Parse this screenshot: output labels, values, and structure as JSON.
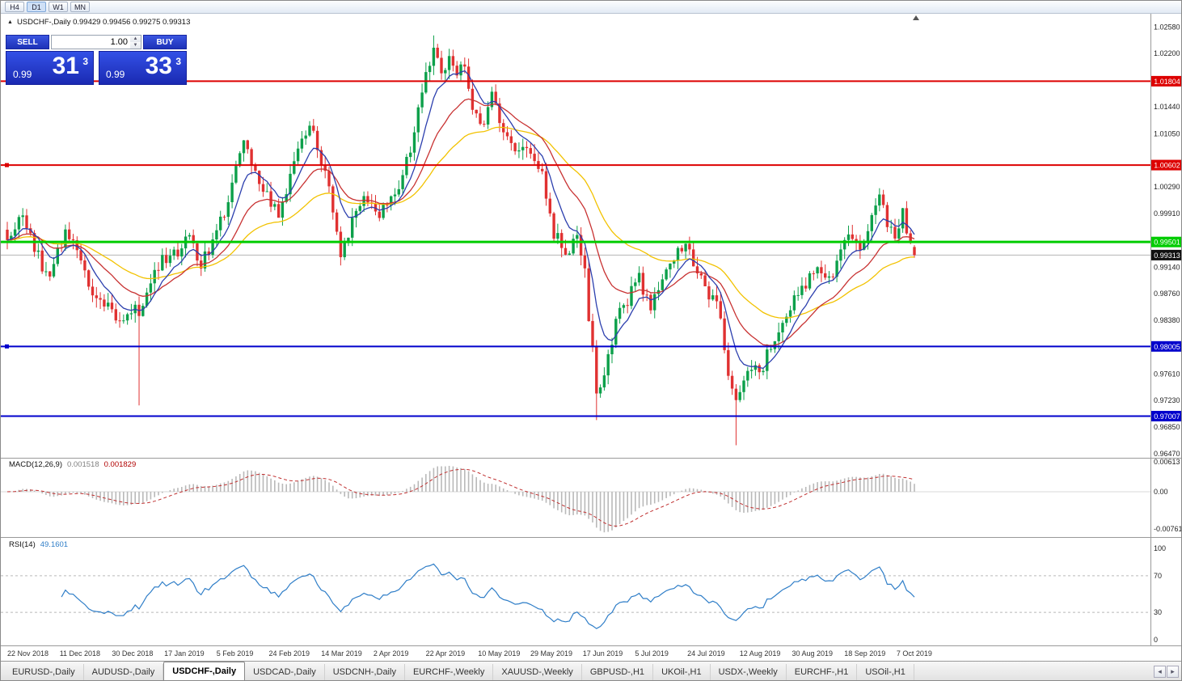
{
  "toolbar": {
    "timeframes": [
      {
        "label": "H4",
        "active": false
      },
      {
        "label": "D1",
        "active": true
      },
      {
        "label": "W1",
        "active": false
      },
      {
        "label": "MN",
        "active": false
      }
    ]
  },
  "chart": {
    "collapse_icon": "▲",
    "symbol_line": "USDCHF-,Daily  0.99429 0.99456 0.99275 0.99313",
    "top_arrow_icon": "▲"
  },
  "trade_widget": {
    "sell_label": "SELL",
    "buy_label": "BUY",
    "volume": "1.00",
    "spinner_up_icon": "▲",
    "spinner_down_icon": "▼",
    "sell_price": {
      "small": "0.99",
      "big": "31",
      "sup": "3"
    },
    "buy_price": {
      "small": "0.99",
      "big": "33",
      "sup": "3"
    }
  },
  "macd_panel": {
    "label": "MACD(12,26,9)",
    "value_main": "0.001518",
    "value_signal": "0.001829"
  },
  "rsi_panel": {
    "label": "RSI(14)",
    "value": "49.1601"
  },
  "tabs": {
    "items": [
      {
        "label": "EURUSD-,Daily",
        "active": false
      },
      {
        "label": "AUDUSD-,Daily",
        "active": false
      },
      {
        "label": "USDCHF-,Daily",
        "active": true
      },
      {
        "label": "USDCAD-,Daily",
        "active": false
      },
      {
        "label": "USDCNH-,Daily",
        "active": false
      },
      {
        "label": "EURCHF-,Weekly",
        "active": false
      },
      {
        "label": "XAUUSD-,Weekly",
        "active": false
      },
      {
        "label": "GBPUSD-,H1",
        "active": false
      },
      {
        "label": "UKOil-,H1",
        "active": false
      },
      {
        "label": "USDX-,Weekly",
        "active": false
      },
      {
        "label": "EURCHF-,H1",
        "active": false
      },
      {
        "label": "USOil-,H1",
        "active": false
      }
    ],
    "scroll_left_icon": "◂",
    "scroll_right_icon": "▸"
  },
  "chart_data": {
    "type": "candlestick",
    "symbol": "USDCHF-",
    "timeframe": "Daily",
    "ohlc_last": {
      "open": 0.99429,
      "high": 0.99456,
      "low": 0.99275,
      "close": 0.99313
    },
    "price_range": {
      "top": 1.0277,
      "bottom": 0.9641
    },
    "price_axis_ticks": [
      "1.02580",
      "1.02200",
      "1.01440",
      "1.01050",
      "1.00290",
      "0.99910",
      "0.99140",
      "0.98760",
      "0.98380",
      "0.97610",
      "0.97230",
      "0.96850",
      "0.96470"
    ],
    "horizontal_lines": [
      {
        "price": 1.01804,
        "tag": "1.01804",
        "color": "#dd0000",
        "width": 2,
        "handle": false
      },
      {
        "price": 1.00602,
        "tag": "1.00602",
        "color": "#dd0000",
        "width": 2,
        "handle": true
      },
      {
        "price": 0.99501,
        "tag": "0.99501",
        "color": "#00cc00",
        "width": 3,
        "handle": false
      },
      {
        "price": 0.98005,
        "tag": "0.98005",
        "color": "#0000cc",
        "width": 2,
        "handle": true
      },
      {
        "price": 0.97007,
        "tag": "0.97007",
        "color": "#0000cc",
        "width": 2,
        "handle": false
      }
    ],
    "current_price": {
      "value": 0.99313,
      "tag": "0.99313"
    },
    "date_labels": [
      "22 Nov 2018",
      "11 Dec 2018",
      "30 Dec 2018",
      "17 Jan 2019",
      "5 Feb 2019",
      "24 Feb 2019",
      "14 Mar 2019",
      "2 Apr 2019",
      "22 Apr 2019",
      "10 May 2019",
      "29 May 2019",
      "17 Jun 2019",
      "5 Jul 2019",
      "24 Jul 2019",
      "12 Aug 2019",
      "30 Aug 2019",
      "18 Sep 2019",
      "7 Oct 2019"
    ],
    "num_candles": 235,
    "price_path_anchors": [
      [
        0,
        0.995
      ],
      [
        2,
        0.9975
      ],
      [
        4,
        0.999
      ],
      [
        6,
        0.996
      ],
      [
        8,
        0.993
      ],
      [
        10,
        0.99
      ],
      [
        13,
        0.9935
      ],
      [
        15,
        0.9962
      ],
      [
        18,
        0.9938
      ],
      [
        21,
        0.9895
      ],
      [
        24,
        0.9858
      ],
      [
        26,
        0.9872
      ],
      [
        28,
        0.9832
      ],
      [
        31,
        0.9852
      ],
      [
        34,
        0.985
      ],
      [
        37,
        0.9888
      ],
      [
        40,
        0.9922
      ],
      [
        44,
        0.9936
      ],
      [
        47,
        0.9962
      ],
      [
        50,
        0.9918
      ],
      [
        53,
        0.9948
      ],
      [
        56,
        0.9995
      ],
      [
        59,
        1.0058
      ],
      [
        61,
        1.0088
      ],
      [
        64,
        1.0042
      ],
      [
        67,
        1.0012
      ],
      [
        70,
        0.9988
      ],
      [
        73,
        1.004
      ],
      [
        76,
        1.0102
      ],
      [
        78,
        1.0118
      ],
      [
        81,
        1.0062
      ],
      [
        84,
        1.0002
      ],
      [
        86,
        0.9938
      ],
      [
        89,
        0.9975
      ],
      [
        92,
        1.0005
      ],
      [
        95,
        0.999
      ],
      [
        98,
        1.0002
      ],
      [
        101,
        1.003
      ],
      [
        104,
        1.0082
      ],
      [
        107,
        1.016
      ],
      [
        110,
        1.0232
      ],
      [
        112,
        1.0192
      ],
      [
        114,
        1.0215
      ],
      [
        116,
        1.0183
      ],
      [
        118,
        1.0205
      ],
      [
        120,
        1.0138
      ],
      [
        123,
        1.0115
      ],
      [
        125,
        1.0163
      ],
      [
        128,
        1.011
      ],
      [
        131,
        1.0072
      ],
      [
        134,
        1.0092
      ],
      [
        137,
        1.0065
      ],
      [
        139,
        1.0022
      ],
      [
        141,
        0.9962
      ],
      [
        144,
        0.9938
      ],
      [
        147,
        0.9955
      ],
      [
        149,
        0.9905
      ],
      [
        152,
        0.9732
      ],
      [
        154,
        0.9762
      ],
      [
        157,
        0.984
      ],
      [
        160,
        0.9866
      ],
      [
        163,
        0.9896
      ],
      [
        166,
        0.9856
      ],
      [
        169,
        0.9896
      ],
      [
        172,
        0.9932
      ],
      [
        175,
        0.9948
      ],
      [
        178,
        0.9902
      ],
      [
        181,
        0.987
      ],
      [
        183,
        0.9872
      ],
      [
        186,
        0.9762
      ],
      [
        188,
        0.9716
      ],
      [
        191,
        0.9776
      ],
      [
        194,
        0.9756
      ],
      [
        197,
        0.98
      ],
      [
        200,
        0.9832
      ],
      [
        203,
        0.9866
      ],
      [
        206,
        0.9886
      ],
      [
        209,
        0.992
      ],
      [
        212,
        0.9896
      ],
      [
        215,
        0.9936
      ],
      [
        218,
        0.996
      ],
      [
        220,
        0.9936
      ],
      [
        223,
        0.9986
      ],
      [
        225,
        1.0016
      ],
      [
        227,
        0.9976
      ],
      [
        229,
        0.9946
      ],
      [
        231,
        0.9988
      ],
      [
        233,
        0.9952
      ],
      [
        234,
        0.99313
      ]
    ],
    "spikes": [
      {
        "day": 34,
        "low": 0.9716
      },
      {
        "day": 110,
        "high": 1.0246
      },
      {
        "day": 152,
        "low": 0.9695
      },
      {
        "day": 188,
        "low": 0.9659
      }
    ],
    "candle_up_color": "#0ca04a",
    "candle_down_color": "#e03131",
    "ma_lines": [
      {
        "period": 42,
        "color": "#f2c200"
      },
      {
        "period": 20,
        "color": "#c83232"
      },
      {
        "period": 8,
        "color": "#2c3fae"
      }
    ],
    "macd": {
      "fast": 12,
      "slow": 26,
      "signal": 9,
      "hist_color": "#b9b9b9",
      "signal_color": "#c03030",
      "axis_ticks": [
        "0.00613",
        "0.00",
        "-0.00761"
      ]
    },
    "rsi": {
      "period": 14,
      "color": "#2f7ec8",
      "levels": [
        70,
        30
      ],
      "axis_ticks": [
        "100",
        "70",
        "30",
        "0"
      ]
    }
  }
}
